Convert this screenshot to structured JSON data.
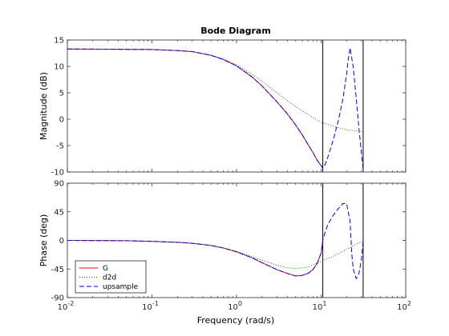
{
  "chart_data": {
    "type": "line",
    "title": "Bode Diagram",
    "xlabel": "Frequency  (rad/s)",
    "xscale": "log",
    "xlim": [
      0.01,
      100
    ],
    "x_ticks": [
      {
        "value": 0.01,
        "base": "10",
        "exp": "-2"
      },
      {
        "value": 0.1,
        "base": "10",
        "exp": "-1"
      },
      {
        "value": 1,
        "base": "10",
        "exp": "0"
      },
      {
        "value": 10,
        "base": "10",
        "exp": "1"
      },
      {
        "value": 100,
        "base": "10",
        "exp": "2"
      }
    ],
    "vertical_lines": [
      10.47,
      31.4
    ],
    "legend": {
      "position": "lower-left",
      "entries": [
        "G",
        "d2d",
        "upsample"
      ]
    },
    "panels": [
      {
        "name": "magnitude",
        "ylabel": "Magnitude (dB)",
        "ylim": [
          -10,
          15
        ],
        "yticks": [
          15,
          10,
          5,
          0,
          -5,
          -10
        ],
        "series": [
          {
            "name": "G",
            "color": "#ff0000",
            "dash": "solid",
            "x": [
              0.01,
              0.1,
              0.2,
              0.3,
              0.5,
              0.7,
              1,
              1.5,
              2,
              3,
              4,
              5,
              6,
              7,
              8,
              9,
              10,
              10.47
            ],
            "y": [
              13.3,
              13.2,
              13.0,
              12.8,
              12.1,
              11.3,
              10.1,
              8.1,
              6.3,
              3.3,
              1.0,
              -1.1,
              -3.0,
              -4.8,
              -6.3,
              -7.8,
              -8.8,
              -9.3
            ]
          },
          {
            "name": "d2d",
            "color": "#008000",
            "dash": "dotted",
            "x": [
              0.01,
              0.1,
              0.2,
              0.3,
              0.5,
              0.7,
              1,
              1.5,
              2,
              3,
              4,
              5,
              7,
              10,
              15,
              20,
              25,
              31.4
            ],
            "y": [
              13.3,
              13.2,
              13.0,
              12.8,
              12.1,
              11.4,
              10.3,
              8.6,
              7.2,
              5.0,
              3.5,
              2.4,
              0.9,
              -0.6,
              -1.5,
              -2.0,
              -2.2,
              -2.3
            ]
          },
          {
            "name": "upsample",
            "color": "#0000ff",
            "dash": "dashed",
            "x": [
              0.01,
              0.1,
              0.2,
              0.3,
              0.5,
              0.7,
              1,
              1.5,
              2,
              3,
              4,
              5,
              6,
              7,
              8,
              9,
              10,
              10.47,
              11,
              12,
              14,
              16,
              18,
              20,
              21,
              22,
              24,
              26,
              28,
              30,
              31.4
            ],
            "y": [
              13.3,
              13.2,
              13.0,
              12.8,
              12.1,
              11.3,
              10.1,
              8.1,
              6.3,
              3.3,
              1.0,
              -1.1,
              -3.0,
              -4.8,
              -6.3,
              -7.8,
              -8.8,
              -9.3,
              -8.8,
              -7.2,
              -3.8,
              -0.2,
              3.6,
              8.5,
              11.5,
              13.5,
              9.8,
              4.0,
              -1.8,
              -6.5,
              -9.5
            ]
          }
        ]
      },
      {
        "name": "phase",
        "ylabel": "Phase (deg)",
        "ylim": [
          -90,
          90
        ],
        "yticks": [
          90,
          45,
          0,
          -45,
          -90
        ],
        "series": [
          {
            "name": "G",
            "color": "#ff0000",
            "dash": "solid",
            "x": [
              0.01,
              0.05,
              0.1,
              0.2,
              0.3,
              0.5,
              0.7,
              1,
              1.5,
              2,
              3,
              4,
              5,
              6,
              7,
              8,
              9,
              10,
              10.47
            ],
            "y": [
              0,
              -0.5,
              -1.5,
              -3.0,
              -4.5,
              -8,
              -12,
              -18,
              -27,
              -35,
              -46,
              -52,
              -56,
              -55,
              -52,
              -46,
              -36,
              -20,
              0
            ]
          },
          {
            "name": "d2d",
            "color": "#008000",
            "dash": "dotted",
            "x": [
              0.01,
              0.05,
              0.1,
              0.2,
              0.3,
              0.5,
              0.7,
              1,
              1.5,
              2,
              3,
              4,
              5,
              7,
              10,
              15,
              20,
              25,
              31.4
            ],
            "y": [
              0,
              -0.5,
              -1.5,
              -3.0,
              -4.5,
              -8,
              -12,
              -17,
              -25,
              -31,
              -39,
              -43,
              -44.5,
              -42,
              -33,
              -23,
              -14,
              -7,
              -1
            ]
          },
          {
            "name": "upsample",
            "color": "#0000ff",
            "dash": "dashed",
            "x": [
              0.01,
              0.05,
              0.1,
              0.2,
              0.3,
              0.5,
              0.7,
              1,
              1.5,
              2,
              3,
              4,
              5,
              6,
              7,
              8,
              9,
              10,
              10.47,
              11,
              12,
              14,
              16,
              18,
              20,
              22,
              23,
              24,
              26,
              28,
              30,
              31.4
            ],
            "y": [
              0,
              -0.5,
              -1.5,
              -3.0,
              -4.5,
              -8,
              -12,
              -18,
              -27,
              -35,
              -46,
              -52,
              -56,
              -55,
              -52,
              -46,
              -36,
              -20,
              0,
              10,
              25,
              40,
              50,
              58,
              58,
              30,
              -20,
              -45,
              -60,
              -52,
              -30,
              0
            ]
          }
        ]
      }
    ]
  }
}
